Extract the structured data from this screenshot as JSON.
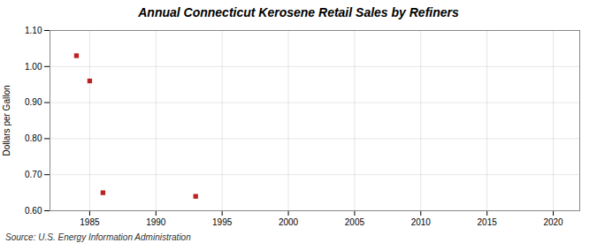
{
  "chart_data": {
    "type": "scatter",
    "title": "Annual Connecticut Kerosene Retail Sales by Refiners",
    "ylabel": "Dollars per Gallon",
    "source": "Source: U.S. Energy Information Administration",
    "x": [
      1984,
      1985,
      1986,
      1993
    ],
    "values": [
      1.03,
      0.96,
      0.65,
      0.64
    ],
    "color": "#bb2222",
    "marker": "square",
    "xlim": [
      1982,
      2022
    ],
    "ylim": [
      0.6,
      1.1
    ],
    "xticks": [
      1985,
      1990,
      1995,
      2000,
      2005,
      2010,
      2015,
      2020
    ],
    "yticks": [
      {
        "value": 0.6,
        "label": "0.60"
      },
      {
        "value": 0.7,
        "label": "0.70"
      },
      {
        "value": 0.8,
        "label": "0.80"
      },
      {
        "value": 0.9,
        "label": "0.90"
      },
      {
        "value": 1.0,
        "label": "1.00"
      },
      {
        "value": 1.1,
        "label": "1.10"
      }
    ],
    "grid": true
  }
}
